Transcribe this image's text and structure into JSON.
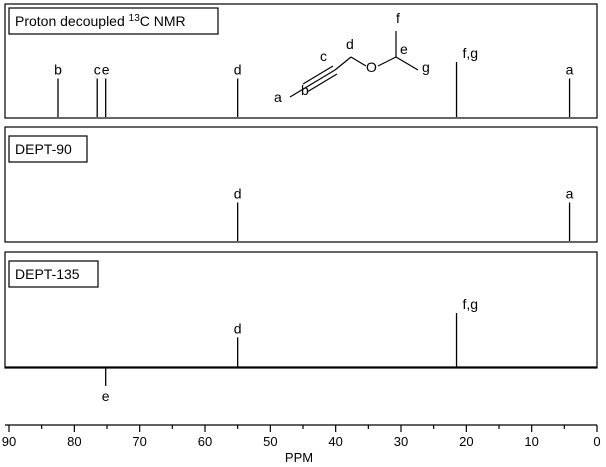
{
  "molecule": {
    "atoms": {
      "a": "a",
      "b": "b",
      "c": "c",
      "d": "d",
      "e": "e",
      "f": "f",
      "g": "g",
      "oxygen": "O"
    }
  },
  "panels": [
    {
      "id": "proton",
      "title_main": "Proton decoupled ",
      "title_sup": "13",
      "title_tail": "C NMR",
      "peaks": [
        {
          "label": "b",
          "ppm": 82.5,
          "intensity": 0.7
        },
        {
          "label": "c",
          "ppm": 76.5,
          "intensity": 0.7
        },
        {
          "label": "e",
          "ppm": 75.2,
          "intensity": 0.7
        },
        {
          "label": "d",
          "ppm": 55.0,
          "intensity": 0.7
        },
        {
          "label": "f,g",
          "ppm": 21.5,
          "intensity": 1.0
        },
        {
          "label": "a",
          "ppm": 4.2,
          "intensity": 0.7
        }
      ]
    },
    {
      "id": "dept90",
      "title": "DEPT-90",
      "peaks": [
        {
          "label": "d",
          "ppm": 55.0,
          "intensity": 0.7
        },
        {
          "label": "a",
          "ppm": 4.2,
          "intensity": 0.7
        }
      ]
    },
    {
      "id": "dept135",
      "title": "DEPT-135",
      "peaks": [
        {
          "label": "f,g",
          "ppm": 21.5,
          "intensity": 1.0
        },
        {
          "label": "d",
          "ppm": 55.0,
          "intensity": 0.55
        },
        {
          "label": "e",
          "ppm": 75.2,
          "intensity": -0.35
        }
      ]
    }
  ],
  "axis": {
    "title": "PPM",
    "min": 0,
    "max": 90,
    "ticks": [
      "90",
      "80",
      "70",
      "60",
      "50",
      "40",
      "30",
      "20",
      "10",
      "0"
    ]
  }
}
